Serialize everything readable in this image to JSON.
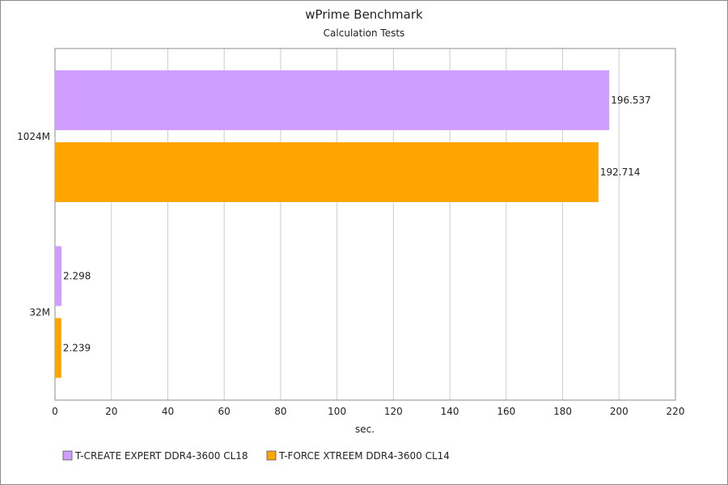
{
  "chart_data": {
    "type": "bar",
    "orientation": "horizontal",
    "title": "wPrime Benchmark",
    "subtitle": "Calculation Tests",
    "xlabel": "sec.",
    "ylabel": "",
    "xlim": [
      0,
      220
    ],
    "x_ticks": [
      0,
      20,
      40,
      60,
      80,
      100,
      120,
      140,
      160,
      180,
      200,
      220
    ],
    "grid": true,
    "legend_position": "bottom-left",
    "categories": [
      "1024M",
      "32M"
    ],
    "series": [
      {
        "name": "T-CREATE EXPERT DDR4-3600 CL18",
        "color": "#d09eff",
        "values": [
          196.537,
          2.298
        ],
        "labels": [
          "196.537",
          "2.298"
        ]
      },
      {
        "name": "T-FORCE XTREEM DDR4-3600 CL14",
        "color": "#ffa500",
        "values": [
          192.714,
          2.239
        ],
        "labels": [
          "192.714",
          "2.239"
        ]
      }
    ]
  }
}
